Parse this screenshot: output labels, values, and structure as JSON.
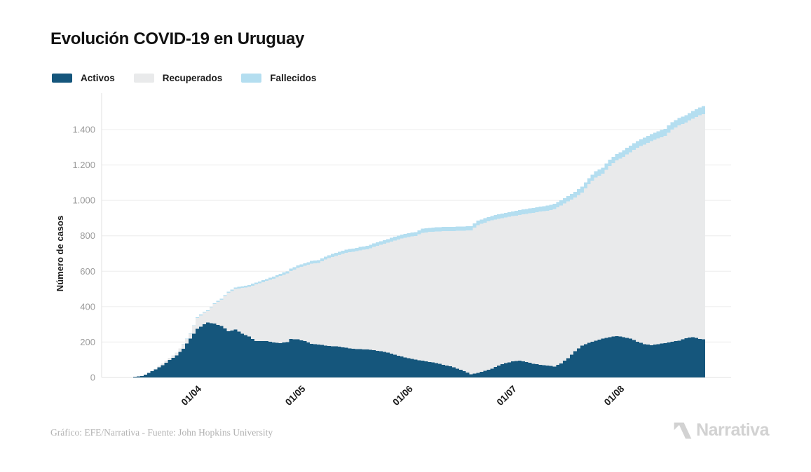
{
  "title": "Evolución COVID-19 en Uruguay",
  "footer": {
    "credit": "Gráfico: EFE/Narrativa - Fuente: John Hopkins University",
    "brand": "Narrativa"
  },
  "colors": {
    "activos": "#15567c",
    "recuperados": "#e9eaeb",
    "fallecidos": "#b4def0",
    "grid": "#ececec",
    "axis": "#e0e0e0",
    "tick_text": "#9b9b9b",
    "label_text": "#1a1a1a"
  },
  "chart_data": {
    "type": "bar",
    "subtype": "stacked-daily-bars",
    "title": "Evolución COVID-19 en Uruguay",
    "xlabel": "",
    "ylabel": "Número de casos",
    "ylim": [
      0,
      1600
    ],
    "grid": "horizontal",
    "legend_position": "top-left",
    "y_ticks": [
      {
        "value": 0,
        "label": "0"
      },
      {
        "value": 200,
        "label": "200"
      },
      {
        "value": 400,
        "label": "400"
      },
      {
        "value": 600,
        "label": "600"
      },
      {
        "value": 800,
        "label": "800"
      },
      {
        "value": 1000,
        "label": "1.000"
      },
      {
        "value": 1200,
        "label": "1.200"
      },
      {
        "value": 1400,
        "label": "1.400"
      }
    ],
    "x_ticks": [
      {
        "day": 18,
        "label": "01/04"
      },
      {
        "day": 48,
        "label": "01/05"
      },
      {
        "day": 79,
        "label": "01/06"
      },
      {
        "day": 109,
        "label": "01/07"
      },
      {
        "day": 140,
        "label": "01/08"
      }
    ],
    "series": [
      {
        "key": "activos",
        "name": "Activos",
        "color": "#15567c"
      },
      {
        "key": "recuperados",
        "name": "Recuperados",
        "color": "#e9eaeb"
      },
      {
        "key": "fallecidos",
        "name": "Fallecidos",
        "color": "#b4def0"
      }
    ],
    "samples": [
      {
        "day": 0,
        "date": "14/03",
        "activos": 4,
        "recuperados": 0,
        "fallecidos": 0
      },
      {
        "day": 2,
        "date": "16/03",
        "activos": 8,
        "recuperados": 0,
        "fallecidos": 0
      },
      {
        "day": 4,
        "date": "18/03",
        "activos": 25,
        "recuperados": 0,
        "fallecidos": 0
      },
      {
        "day": 6,
        "date": "20/03",
        "activos": 45,
        "recuperados": 5,
        "fallecidos": 0
      },
      {
        "day": 8,
        "date": "22/03",
        "activos": 70,
        "recuperados": 9,
        "fallecidos": 0
      },
      {
        "day": 10,
        "date": "24/03",
        "activos": 98,
        "recuperados": 12,
        "fallecidos": 0
      },
      {
        "day": 12,
        "date": "26/03",
        "activos": 125,
        "recuperados": 15,
        "fallecidos": 0
      },
      {
        "day": 14,
        "date": "28/03",
        "activos": 162,
        "recuperados": 26,
        "fallecidos": 1
      },
      {
        "day": 16,
        "date": "30/03",
        "activos": 220,
        "recuperados": 28,
        "fallecidos": 2
      },
      {
        "day": 18,
        "date": "01/04",
        "activos": 275,
        "recuperados": 61,
        "fallecidos": 4
      },
      {
        "day": 20,
        "date": "03/04",
        "activos": 300,
        "recuperados": 66,
        "fallecidos": 4
      },
      {
        "day": 21,
        "date": "04/04",
        "activos": 310,
        "recuperados": 66,
        "fallecidos": 4
      },
      {
        "day": 23,
        "date": "06/04",
        "activos": 305,
        "recuperados": 110,
        "fallecidos": 5
      },
      {
        "day": 25,
        "date": "08/04",
        "activos": 290,
        "recuperados": 149,
        "fallecidos": 6
      },
      {
        "day": 27,
        "date": "10/04",
        "activos": 262,
        "recuperados": 216,
        "fallecidos": 7
      },
      {
        "day": 29,
        "date": "12/04",
        "activos": 270,
        "recuperados": 230,
        "fallecidos": 8
      },
      {
        "day": 31,
        "date": "14/04",
        "activos": 248,
        "recuperados": 258,
        "fallecidos": 9
      },
      {
        "day": 33,
        "date": "16/04",
        "activos": 232,
        "recuperados": 280,
        "fallecidos": 10
      },
      {
        "day": 35,
        "date": "18/04",
        "activos": 205,
        "recuperados": 321,
        "fallecidos": 10
      },
      {
        "day": 38,
        "date": "21/04",
        "activos": 205,
        "recuperados": 340,
        "fallecidos": 11
      },
      {
        "day": 40,
        "date": "23/04",
        "activos": 198,
        "recuperados": 360,
        "fallecidos": 12
      },
      {
        "day": 42,
        "date": "25/04",
        "activos": 194,
        "recuperados": 379,
        "fallecidos": 12
      },
      {
        "day": 44,
        "date": "27/04",
        "activos": 200,
        "recuperados": 387,
        "fallecidos": 13
      },
      {
        "day": 45,
        "date": "28/04",
        "activos": 218,
        "recuperados": 384,
        "fallecidos": 13
      },
      {
        "day": 47,
        "date": "30/04",
        "activos": 215,
        "recuperados": 403,
        "fallecidos": 14
      },
      {
        "day": 49,
        "date": "02/05",
        "activos": 205,
        "recuperados": 425,
        "fallecidos": 15
      },
      {
        "day": 51,
        "date": "04/05",
        "activos": 190,
        "recuperados": 452,
        "fallecidos": 16
      },
      {
        "day": 53,
        "date": "06/05",
        "activos": 186,
        "recuperados": 461,
        "fallecidos": 16
      },
      {
        "day": 55,
        "date": "08/05",
        "activos": 180,
        "recuperados": 486,
        "fallecidos": 17
      },
      {
        "day": 57,
        "date": "10/05",
        "activos": 177,
        "recuperados": 504,
        "fallecidos": 17
      },
      {
        "day": 59,
        "date": "12/05",
        "activos": 174,
        "recuperados": 518,
        "fallecidos": 18
      },
      {
        "day": 61,
        "date": "14/05",
        "activos": 168,
        "recuperados": 536,
        "fallecidos": 18
      },
      {
        "day": 63,
        "date": "16/05",
        "activos": 162,
        "recuperados": 548,
        "fallecidos": 18
      },
      {
        "day": 65,
        "date": "18/05",
        "activos": 160,
        "recuperados": 558,
        "fallecidos": 19
      },
      {
        "day": 67,
        "date": "20/05",
        "activos": 158,
        "recuperados": 566,
        "fallecidos": 19
      },
      {
        "day": 69,
        "date": "22/05",
        "activos": 154,
        "recuperados": 583,
        "fallecidos": 20
      },
      {
        "day": 71,
        "date": "24/05",
        "activos": 148,
        "recuperados": 601,
        "fallecidos": 20
      },
      {
        "day": 73,
        "date": "26/05",
        "activos": 140,
        "recuperados": 621,
        "fallecidos": 21
      },
      {
        "day": 75,
        "date": "28/05",
        "activos": 128,
        "recuperados": 646,
        "fallecidos": 21
      },
      {
        "day": 77,
        "date": "30/05",
        "activos": 118,
        "recuperados": 667,
        "fallecidos": 22
      },
      {
        "day": 79,
        "date": "01/06",
        "activos": 108,
        "recuperados": 685,
        "fallecidos": 22
      },
      {
        "day": 81,
        "date": "03/06",
        "activos": 100,
        "recuperados": 699,
        "fallecidos": 22
      },
      {
        "day": 83,
        "date": "05/06",
        "activos": 95,
        "recuperados": 722,
        "fallecidos": 23
      },
      {
        "day": 85,
        "date": "07/06",
        "activos": 88,
        "recuperados": 734,
        "fallecidos": 23
      },
      {
        "day": 87,
        "date": "09/06",
        "activos": 82,
        "recuperados": 743,
        "fallecidos": 23
      },
      {
        "day": 89,
        "date": "11/06",
        "activos": 72,
        "recuperados": 754,
        "fallecidos": 24
      },
      {
        "day": 91,
        "date": "13/06",
        "activos": 63,
        "recuperados": 763,
        "fallecidos": 24
      },
      {
        "day": 93,
        "date": "15/06",
        "activos": 50,
        "recuperados": 778,
        "fallecidos": 24
      },
      {
        "day": 95,
        "date": "17/06",
        "activos": 36,
        "recuperados": 793,
        "fallecidos": 24
      },
      {
        "day": 97,
        "date": "19/06",
        "activos": 18,
        "recuperados": 813,
        "fallecidos": 24
      },
      {
        "day": 99,
        "date": "21/06",
        "activos": 25,
        "recuperados": 835,
        "fallecidos": 25
      },
      {
        "day": 101,
        "date": "23/06",
        "activos": 38,
        "recuperados": 837,
        "fallecidos": 25
      },
      {
        "day": 103,
        "date": "25/06",
        "activos": 50,
        "recuperados": 837,
        "fallecidos": 25
      },
      {
        "day": 105,
        "date": "27/06",
        "activos": 68,
        "recuperados": 828,
        "fallecidos": 26
      },
      {
        "day": 107,
        "date": "29/06",
        "activos": 82,
        "recuperados": 822,
        "fallecidos": 26
      },
      {
        "day": 109,
        "date": "01/07",
        "activos": 90,
        "recuperados": 821,
        "fallecidos": 27
      },
      {
        "day": 111,
        "date": "03/07",
        "activos": 94,
        "recuperados": 824,
        "fallecidos": 27
      },
      {
        "day": 113,
        "date": "05/07",
        "activos": 88,
        "recuperados": 836,
        "fallecidos": 28
      },
      {
        "day": 115,
        "date": "07/07",
        "activos": 78,
        "recuperados": 852,
        "fallecidos": 28
      },
      {
        "day": 117,
        "date": "09/07",
        "activos": 72,
        "recuperados": 865,
        "fallecidos": 28
      },
      {
        "day": 119,
        "date": "11/07",
        "activos": 68,
        "recuperados": 873,
        "fallecidos": 29
      },
      {
        "day": 121,
        "date": "13/07",
        "activos": 62,
        "recuperados": 889,
        "fallecidos": 29
      },
      {
        "day": 123,
        "date": "15/07",
        "activos": 80,
        "recuperados": 890,
        "fallecidos": 30
      },
      {
        "day": 125,
        "date": "17/07",
        "activos": 108,
        "recuperados": 886,
        "fallecidos": 31
      },
      {
        "day": 127,
        "date": "19/07",
        "activos": 148,
        "recuperados": 868,
        "fallecidos": 32
      },
      {
        "day": 129,
        "date": "21/07",
        "activos": 180,
        "recuperados": 865,
        "fallecidos": 33
      },
      {
        "day": 131,
        "date": "23/07",
        "activos": 195,
        "recuperados": 896,
        "fallecidos": 34
      },
      {
        "day": 133,
        "date": "25/07",
        "activos": 207,
        "recuperados": 923,
        "fallecidos": 35
      },
      {
        "day": 135,
        "date": "27/07",
        "activos": 220,
        "recuperados": 930,
        "fallecidos": 35
      },
      {
        "day": 137,
        "date": "29/07",
        "activos": 228,
        "recuperados": 966,
        "fallecidos": 36
      },
      {
        "day": 139,
        "date": "31/07",
        "activos": 234,
        "recuperados": 992,
        "fallecidos": 36
      },
      {
        "day": 141,
        "date": "02/08",
        "activos": 228,
        "recuperados": 1018,
        "fallecidos": 37
      },
      {
        "day": 143,
        "date": "04/08",
        "activos": 220,
        "recuperados": 1052,
        "fallecidos": 38
      },
      {
        "day": 145,
        "date": "06/08",
        "activos": 202,
        "recuperados": 1095,
        "fallecidos": 38
      },
      {
        "day": 147,
        "date": "08/08",
        "activos": 188,
        "recuperados": 1128,
        "fallecidos": 39
      },
      {
        "day": 149,
        "date": "10/08",
        "activos": 182,
        "recuperados": 1153,
        "fallecidos": 40
      },
      {
        "day": 151,
        "date": "12/08",
        "activos": 188,
        "recuperados": 1162,
        "fallecidos": 40
      },
      {
        "day": 153,
        "date": "14/08",
        "activos": 194,
        "recuperados": 1170,
        "fallecidos": 41
      },
      {
        "day": 155,
        "date": "16/08",
        "activos": 202,
        "recuperados": 1199,
        "fallecidos": 41
      },
      {
        "day": 157,
        "date": "18/08",
        "activos": 208,
        "recuperados": 1215,
        "fallecidos": 42
      },
      {
        "day": 159,
        "date": "20/08",
        "activos": 222,
        "recuperados": 1218,
        "fallecidos": 42
      },
      {
        "day": 161,
        "date": "22/08",
        "activos": 228,
        "recuperados": 1234,
        "fallecidos": 43
      },
      {
        "day": 163,
        "date": "24/08",
        "activos": 218,
        "recuperados": 1263,
        "fallecidos": 44
      },
      {
        "day": 164,
        "date": "25/08",
        "activos": 215,
        "recuperados": 1272,
        "fallecidos": 45
      }
    ]
  }
}
